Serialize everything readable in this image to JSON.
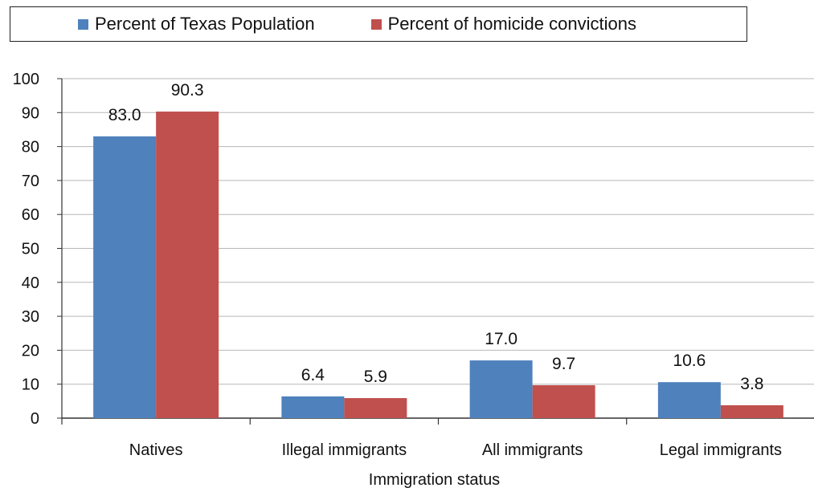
{
  "chart_data": {
    "type": "bar",
    "categories": [
      "Natives",
      "Illegal immigrants",
      "All immigrants",
      "Legal immigrants"
    ],
    "series": [
      {
        "name": "Percent of Texas Population",
        "values": [
          83.0,
          6.4,
          17.0,
          10.6
        ],
        "color": "#4f81bd",
        "labels": [
          "83.0",
          "6.4",
          "17.0",
          "10.6"
        ]
      },
      {
        "name": "Percent of homicide convictions",
        "values": [
          90.3,
          5.9,
          9.7,
          3.8
        ],
        "color": "#c0504d",
        "labels": [
          "90.3",
          "5.9",
          "9.7",
          "3.8"
        ]
      }
    ],
    "xlabel": "Immigration status",
    "ylabel": "",
    "ylim": [
      0,
      100
    ],
    "yticks": [
      "0",
      "10",
      "20",
      "30",
      "40",
      "50",
      "60",
      "70",
      "80",
      "90",
      "100"
    ],
    "grid": true,
    "legend": "top"
  }
}
